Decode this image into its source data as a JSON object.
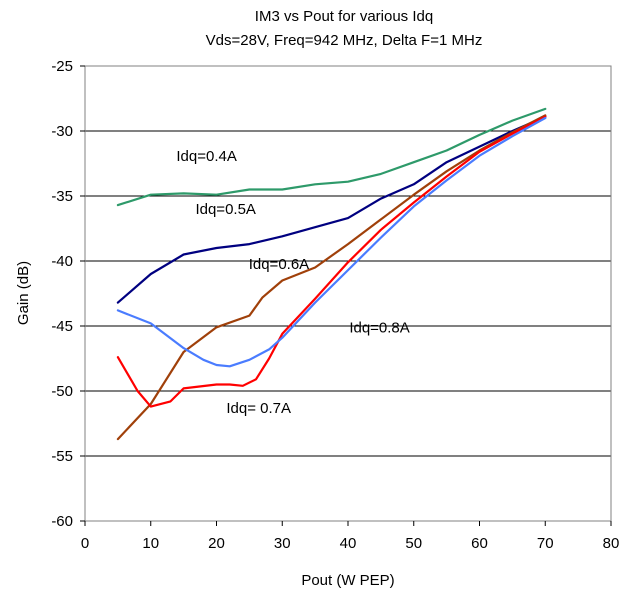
{
  "chart_data": {
    "type": "line",
    "title": "IM3 vs Pout for various Idq",
    "subtitle": "Vds=28V, Freq=942 MHz, Delta F=1 MHz",
    "xlabel": "Pout (W PEP)",
    "ylabel": "Gain (dB)",
    "xlim": [
      0,
      80
    ],
    "ylim": [
      -60,
      -25
    ],
    "xticks": [
      0,
      10,
      20,
      30,
      40,
      50,
      60,
      70,
      80
    ],
    "yticks": [
      -60,
      -55,
      -50,
      -45,
      -40,
      -35,
      -30,
      -25
    ],
    "grid": "horizontal",
    "legend": "none",
    "series": [
      {
        "name": "Idq=0.4A",
        "color": "#2e9a6a",
        "points": [
          [
            5,
            -35.7
          ],
          [
            10,
            -34.9
          ],
          [
            15,
            -34.8
          ],
          [
            20,
            -34.9
          ],
          [
            25,
            -34.5
          ],
          [
            30,
            -34.5
          ],
          [
            35,
            -34.1
          ],
          [
            40,
            -33.9
          ],
          [
            45,
            -33.3
          ],
          [
            50,
            -32.4
          ],
          [
            55,
            -31.5
          ],
          [
            60,
            -30.3
          ],
          [
            65,
            -29.2
          ],
          [
            70,
            -28.3
          ]
        ]
      },
      {
        "name": "Idq=0.5A",
        "color": "#000080",
        "points": [
          [
            5,
            -43.2
          ],
          [
            10,
            -41.0
          ],
          [
            15,
            -39.5
          ],
          [
            20,
            -39.0
          ],
          [
            25,
            -38.7
          ],
          [
            30,
            -38.1
          ],
          [
            35,
            -37.4
          ],
          [
            40,
            -36.7
          ],
          [
            45,
            -35.2
          ],
          [
            50,
            -34.1
          ],
          [
            55,
            -32.4
          ],
          [
            60,
            -31.2
          ],
          [
            65,
            -30.0
          ],
          [
            70,
            -28.9
          ]
        ]
      },
      {
        "name": "Idq=0.6A",
        "color": "#a0400a",
        "points": [
          [
            5,
            -53.7
          ],
          [
            10,
            -51.0
          ],
          [
            15,
            -47.0
          ],
          [
            20,
            -45.1
          ],
          [
            25,
            -44.2
          ],
          [
            27,
            -42.8
          ],
          [
            30,
            -41.5
          ],
          [
            35,
            -40.5
          ],
          [
            40,
            -38.7
          ],
          [
            45,
            -36.8
          ],
          [
            50,
            -34.9
          ],
          [
            55,
            -33.1
          ],
          [
            60,
            -31.5
          ],
          [
            65,
            -30.1
          ],
          [
            70,
            -28.8
          ]
        ]
      },
      {
        "name": "Idq= 0.7A",
        "color": "#ff0000",
        "points": [
          [
            5,
            -47.4
          ],
          [
            8,
            -50.0
          ],
          [
            10,
            -51.2
          ],
          [
            13,
            -50.8
          ],
          [
            15,
            -49.8
          ],
          [
            20,
            -49.5
          ],
          [
            22,
            -49.5
          ],
          [
            24,
            -49.6
          ],
          [
            26,
            -49.1
          ],
          [
            28,
            -47.5
          ],
          [
            30,
            -45.6
          ],
          [
            35,
            -42.9
          ],
          [
            40,
            -40.1
          ],
          [
            45,
            -37.6
          ],
          [
            50,
            -35.5
          ],
          [
            55,
            -33.5
          ],
          [
            60,
            -31.6
          ],
          [
            65,
            -30.2
          ],
          [
            70,
            -28.9
          ]
        ]
      },
      {
        "name": "Idq=0.8A",
        "color": "#4a7cff",
        "points": [
          [
            5,
            -43.8
          ],
          [
            10,
            -44.8
          ],
          [
            15,
            -46.7
          ],
          [
            18,
            -47.6
          ],
          [
            20,
            -48.0
          ],
          [
            22,
            -48.1
          ],
          [
            25,
            -47.6
          ],
          [
            28,
            -46.8
          ],
          [
            30,
            -45.9
          ],
          [
            35,
            -43.2
          ],
          [
            40,
            -40.7
          ],
          [
            45,
            -38.2
          ],
          [
            50,
            -35.8
          ],
          [
            55,
            -33.8
          ],
          [
            60,
            -31.9
          ],
          [
            65,
            -30.4
          ],
          [
            70,
            -29.0
          ]
        ]
      }
    ],
    "annotations": [
      {
        "text": "Idq=0.4A",
        "x": 13.9,
        "y": -32.3
      },
      {
        "text": "Idq=0.5A",
        "x": 16.8,
        "y": -36.4
      },
      {
        "text": "Idq=0.6A",
        "x": 24.9,
        "y": -40.6
      },
      {
        "text": "Idq= 0.7A",
        "x": 21.5,
        "y": -51.7
      },
      {
        "text": "Idq=0.8A",
        "x": 40.2,
        "y": -45.5
      }
    ]
  }
}
